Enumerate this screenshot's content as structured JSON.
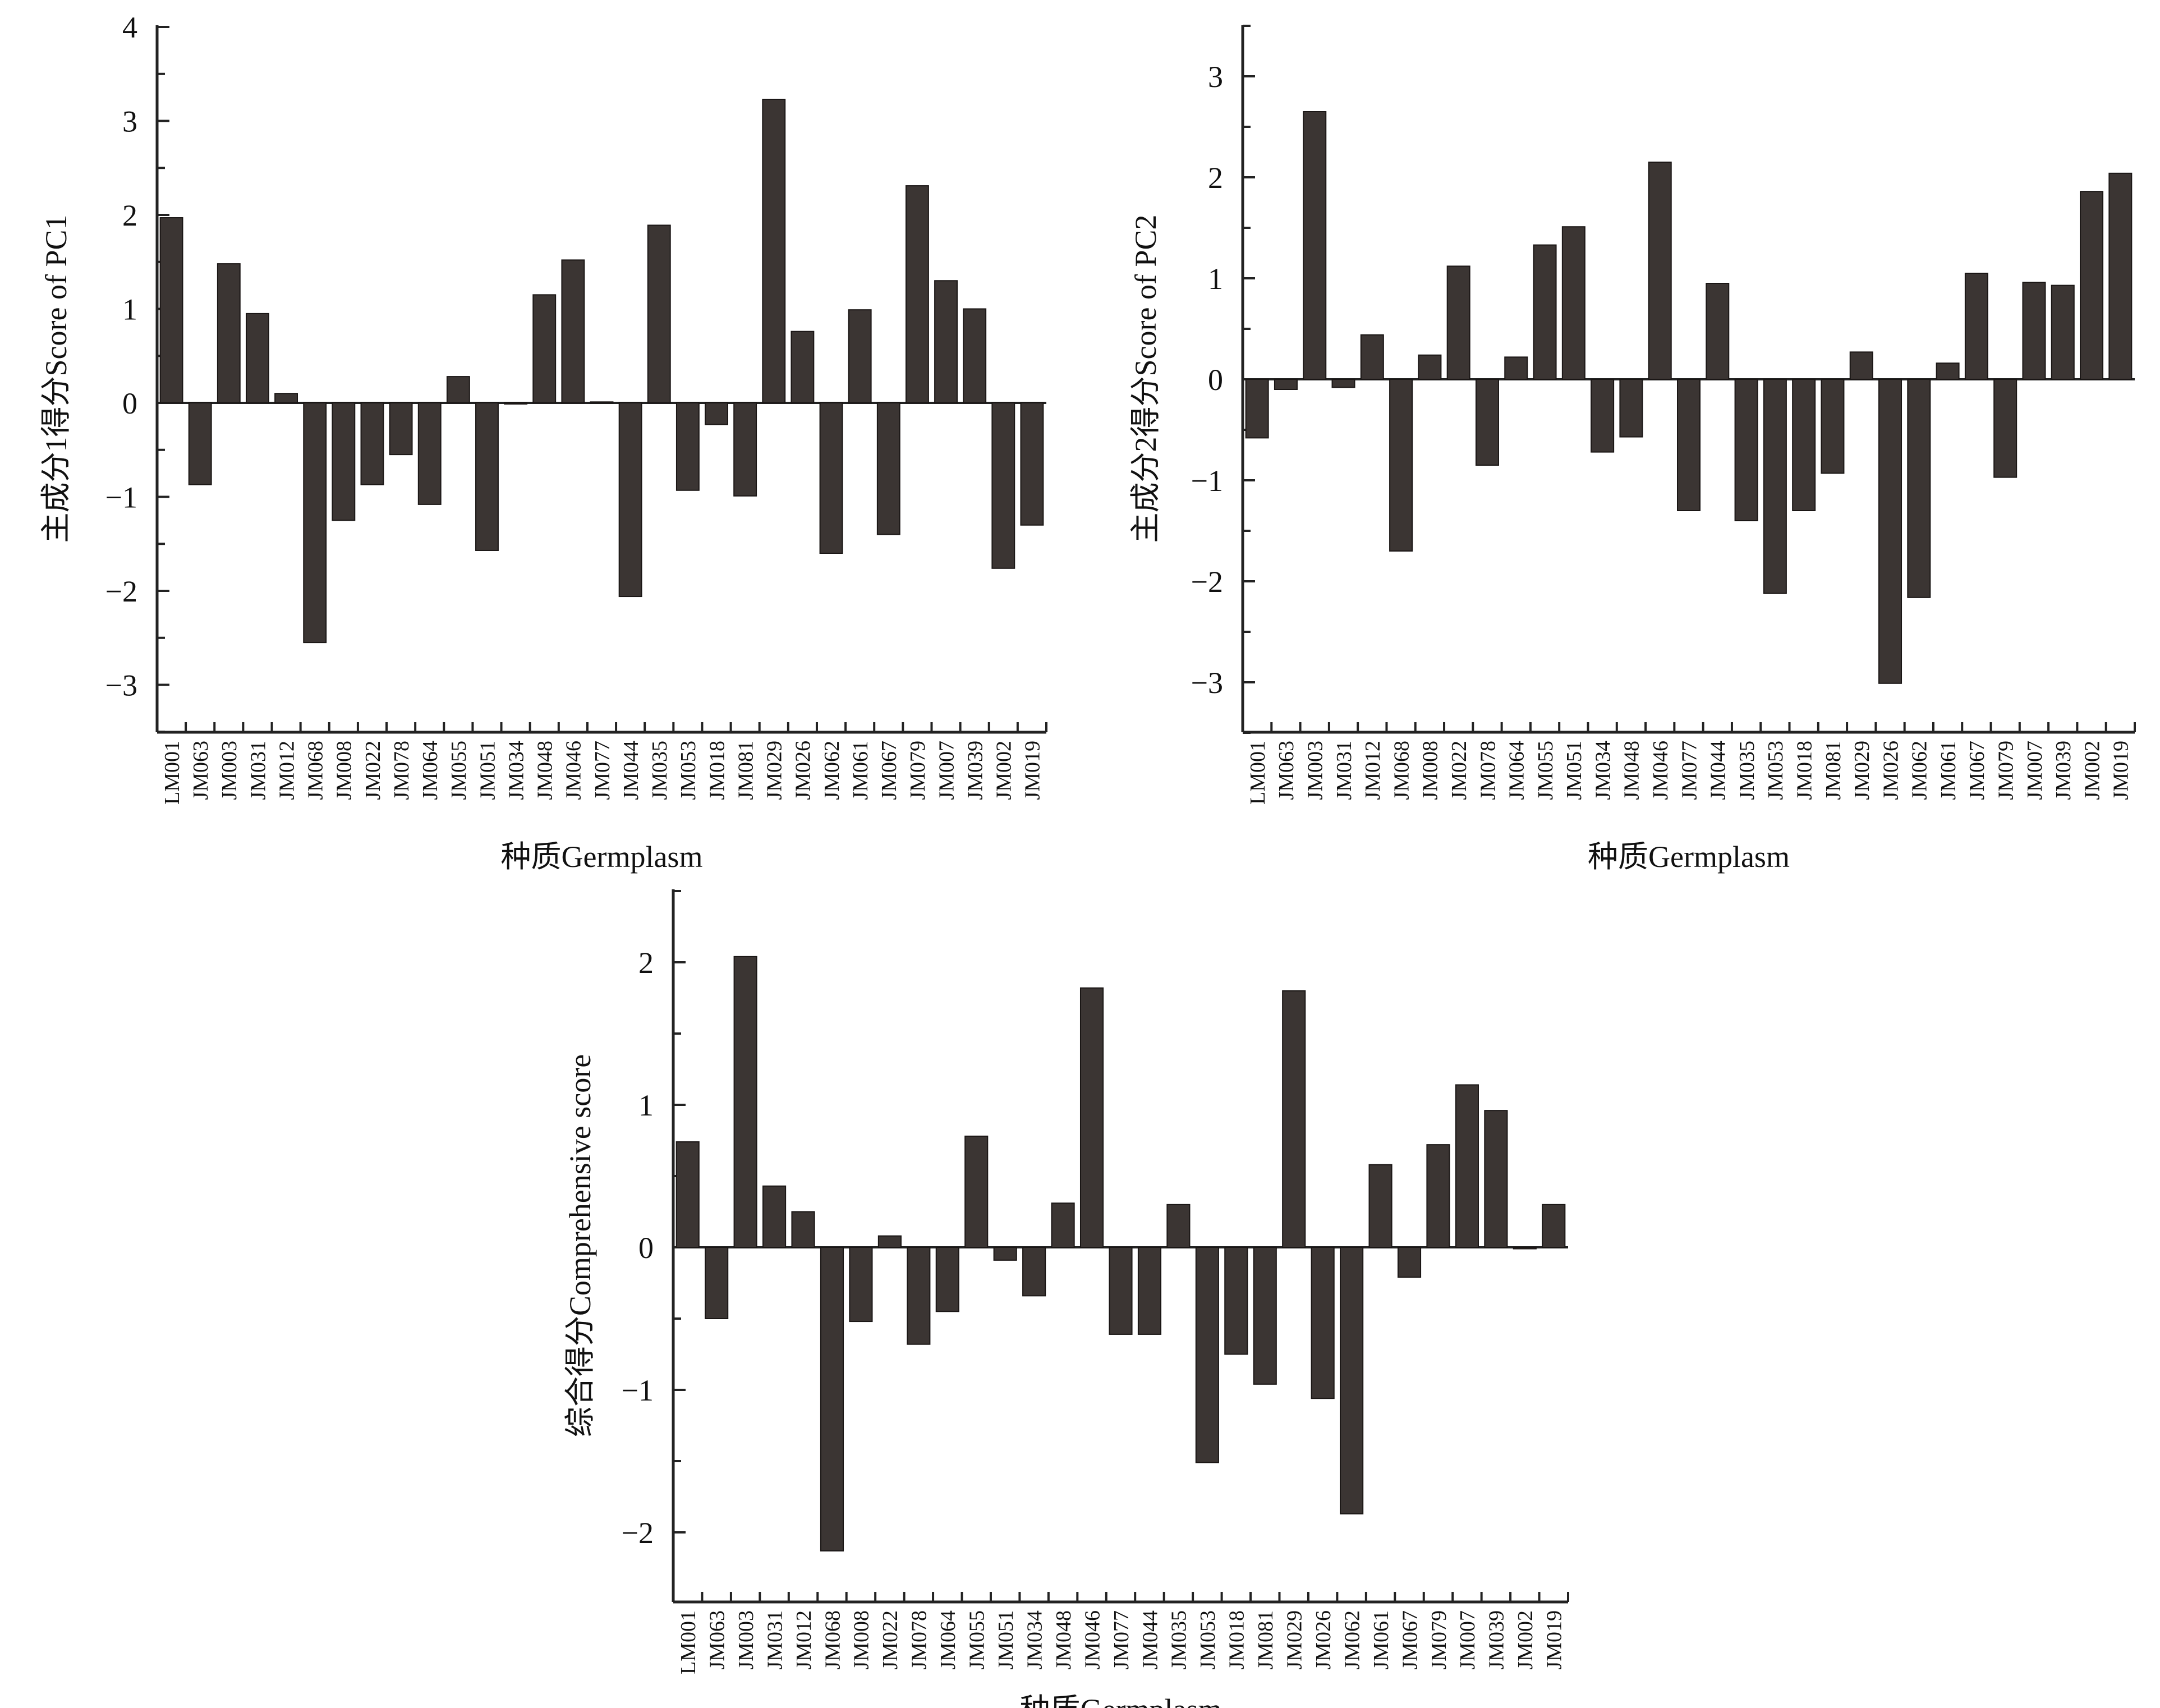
{
  "colors": {
    "bar": "#3b3533",
    "axis": "#222222",
    "background": "#ffffff"
  },
  "chart_data": [
    {
      "type": "bar",
      "title": "",
      "xlabel": "种质Germplasm",
      "ylabel": "主成分1得分Score of  PC1",
      "ylim": [
        -3.5,
        4
      ],
      "yticks": [
        "−3",
        "−2",
        "−1",
        "0",
        "1",
        "2",
        "3",
        "4"
      ],
      "categories": [
        "LM001",
        "JM063",
        "JM003",
        "JM031",
        "JM012",
        "JM068",
        "JM008",
        "JM022",
        "JM078",
        "JM064",
        "JM055",
        "JM051",
        "JM034",
        "JM048",
        "JM046",
        "JM077",
        "JM044",
        "JM035",
        "JM053",
        "JM018",
        "JM081",
        "JM029",
        "JM026",
        "JM062",
        "JM061",
        "JM067",
        "JM079",
        "JM007",
        "JM039",
        "JM002",
        "JM019"
      ],
      "values": [
        1.97,
        -0.87,
        1.48,
        0.95,
        0.1,
        -2.55,
        -1.25,
        -0.87,
        -0.55,
        -1.08,
        0.28,
        -1.57,
        0.0,
        1.15,
        1.52,
        0.01,
        -2.06,
        1.89,
        -0.93,
        -0.23,
        -0.99,
        3.23,
        0.76,
        -1.6,
        0.99,
        -1.4,
        2.31,
        1.3,
        1.0,
        -1.76,
        -1.3
      ],
      "grid": false,
      "legend": "none"
    },
    {
      "type": "bar",
      "title": "",
      "xlabel": "种质Germplasm",
      "ylabel": "主成分2得分Score of  PC2",
      "ylim": [
        -3.5,
        3.5
      ],
      "yticks": [
        "−3",
        "−2",
        "−1",
        "0",
        "1",
        "2",
        "3"
      ],
      "categories": [
        "LM001",
        "JM063",
        "JM003",
        "JM031",
        "JM012",
        "JM068",
        "JM008",
        "JM022",
        "JM078",
        "JM064",
        "JM055",
        "JM051",
        "JM034",
        "JM048",
        "JM046",
        "JM077",
        "JM044",
        "JM035",
        "JM053",
        "JM018",
        "JM081",
        "JM029",
        "JM026",
        "JM062",
        "JM061",
        "JM067",
        "JM079",
        "JM007",
        "JM039",
        "JM002",
        "JM019"
      ],
      "values": [
        -0.58,
        -0.1,
        2.65,
        -0.08,
        0.44,
        -1.7,
        0.24,
        1.12,
        -0.85,
        0.22,
        1.33,
        1.51,
        -0.72,
        -0.57,
        2.15,
        -1.3,
        0.95,
        -1.4,
        -2.12,
        -1.3,
        -0.93,
        0.27,
        -3.01,
        -2.16,
        0.16,
        1.05,
        -0.97,
        0.96,
        0.93,
        1.86,
        2.04
      ],
      "grid": false,
      "legend": "none"
    },
    {
      "type": "bar",
      "title": "",
      "xlabel": "种质Germplasm",
      "ylabel": "综合得分Comprehensive score",
      "ylim": [
        -2.5,
        2.5
      ],
      "yticks": [
        "−2",
        "−1",
        "0",
        "1",
        "2"
      ],
      "categories": [
        "LM001",
        "JM063",
        "JM003",
        "JM031",
        "JM012",
        "JM068",
        "JM008",
        "JM022",
        "JM078",
        "JM064",
        "JM055",
        "JM051",
        "JM034",
        "JM048",
        "JM046",
        "JM077",
        "JM044",
        "JM035",
        "JM053",
        "JM018",
        "JM081",
        "JM029",
        "JM026",
        "JM062",
        "JM061",
        "JM067",
        "JM079",
        "JM007",
        "JM039",
        "JM002",
        "JM019"
      ],
      "values": [
        0.74,
        -0.5,
        2.04,
        0.43,
        0.25,
        -2.13,
        -0.52,
        0.08,
        -0.68,
        -0.45,
        0.78,
        -0.09,
        -0.34,
        0.31,
        1.82,
        -0.61,
        -0.61,
        0.3,
        -1.51,
        -0.75,
        -0.96,
        1.8,
        -1.06,
        -1.87,
        0.58,
        -0.21,
        0.72,
        1.14,
        0.96,
        -0.01,
        0.3
      ],
      "grid": false,
      "legend": "none"
    }
  ]
}
